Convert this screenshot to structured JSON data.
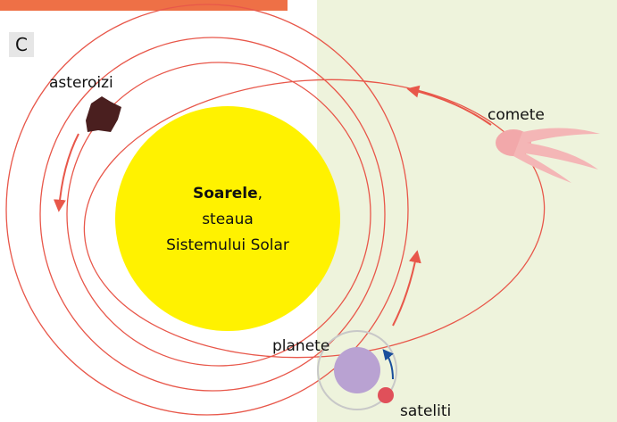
{
  "panel_label": "C",
  "sun": {
    "name": "Soarele",
    "punctuation": ",",
    "line2": "steaua",
    "line3": "Sistemului Solar"
  },
  "labels": {
    "asteroids": "asteroizi",
    "comets": "comete",
    "planets": "planete",
    "satellites": "sateliti"
  }
}
